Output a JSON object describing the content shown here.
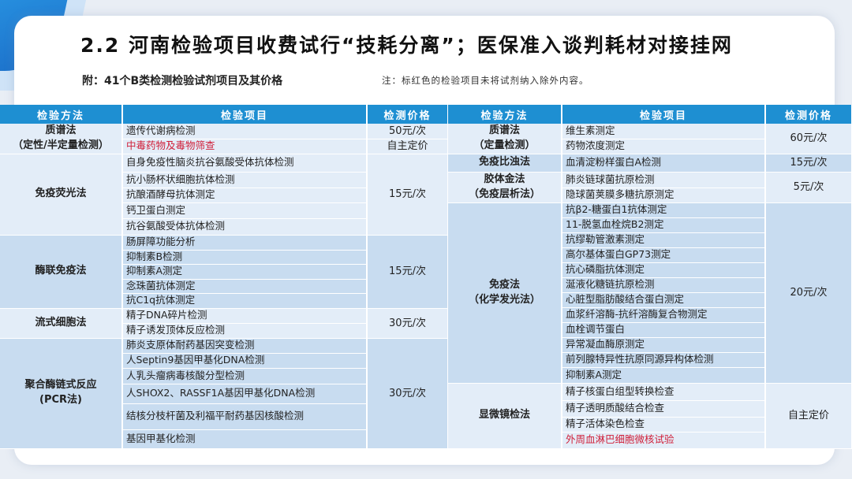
{
  "title": "2.2 河南检验项目收费试行“技耗分离”；医保准入谈判耗材对接挂网",
  "subtitle": "附：41个B类检测检验试剂项目及其价格",
  "note": "注：标红色的检验项目未将试剂纳入除外内容。",
  "colors": {
    "header": "#1e8fd2",
    "red_item": "#d0203a",
    "band_dark": "#c8dcf0",
    "band_light": "#e3edf8"
  },
  "headers": [
    "检验方法",
    "检验项目",
    "检测价格"
  ],
  "left_groups": [
    {
      "method": "质谱法\n（定性/半定量检测）",
      "items": [
        {
          "name": "遗传代谢病检测",
          "price": "50元/次"
        },
        {
          "name": "中毒药物及毒物筛查",
          "price": "自主定价",
          "red": true
        }
      ]
    },
    {
      "method": "免疫荧光法",
      "price": "15元/次",
      "items": [
        {
          "name": "自身免疫性脑炎抗谷氨酸受体抗体检测"
        },
        {
          "name": "抗小肠杯状细胞抗体检测"
        },
        {
          "name": "抗酿酒酵母抗体测定"
        },
        {
          "name": "钙卫蛋白测定"
        },
        {
          "name": "抗谷氨酸受体抗体检测"
        }
      ]
    },
    {
      "method": "酶联免疫法",
      "price": "15元/次",
      "items": [
        {
          "name": "肠屏障功能分析"
        },
        {
          "name": "抑制素B检测"
        },
        {
          "name": "抑制素A测定"
        },
        {
          "name": "念珠菌抗体测定"
        },
        {
          "name": "抗C1q抗体测定"
        }
      ]
    },
    {
      "method": "流式细胞法",
      "price": "30元/次",
      "items": [
        {
          "name": "精子DNA碎片检测"
        },
        {
          "name": "精子诱发顶体反应检测"
        }
      ]
    },
    {
      "method": "聚合酶链式反应\n(PCR法)",
      "price": "30元/次",
      "items": [
        {
          "name": "肺炎支原体耐药基因突变检测"
        },
        {
          "name": "人Septin9基因甲基化DNA检测"
        },
        {
          "name": "人乳头瘤病毒核酸分型检测"
        },
        {
          "name": "人SHOX2、RASSF1A基因甲基化DNA检测"
        },
        {
          "name": "结核分枝杆菌及利福平耐药基因核酸检测"
        },
        {
          "name": "基因甲基化检测"
        }
      ]
    }
  ],
  "right_groups": [
    {
      "method": "质谱法\n（定量检测）",
      "price": "60元/次",
      "items": [
        {
          "name": "维生素测定"
        },
        {
          "name": "药物浓度测定"
        }
      ]
    },
    {
      "method": "免疫比浊法",
      "price": "15元/次",
      "items": [
        {
          "name": "血清淀粉样蛋白A检测"
        }
      ]
    },
    {
      "method": "胶体金法\n（免疫层析法）",
      "price": "5元/次",
      "items": [
        {
          "name": "肺炎链球菌抗原检测"
        },
        {
          "name": "隐球菌荚膜多糖抗原测定"
        }
      ]
    },
    {
      "method": "免疫法\n（化学发光法）",
      "price": "20元/次",
      "items": [
        {
          "name": "抗β2-糖蛋白1抗体测定"
        },
        {
          "name": "11-脱氢血栓烷B2测定"
        },
        {
          "name": "抗缪勒管激素测定"
        },
        {
          "name": "高尔基体蛋白GP73测定"
        },
        {
          "name": "抗心磷脂抗体测定"
        },
        {
          "name": "涎液化糖链抗原检测"
        },
        {
          "name": "心脏型脂肪酸结合蛋白测定"
        },
        {
          "name": "血浆纤溶酶-抗纤溶酶复合物测定"
        },
        {
          "name": "血栓调节蛋白"
        },
        {
          "name": "异常凝血酶原测定"
        },
        {
          "name": "前列腺特异性抗原同源异构体检测"
        },
        {
          "name": "抑制素A测定"
        }
      ]
    },
    {
      "method": "显微镜检法",
      "price": "自主定价",
      "items": [
        {
          "name": "精子核蛋白组型转换检查"
        },
        {
          "name": "精子透明质酸结合检查"
        },
        {
          "name": "精子活体染色检查"
        },
        {
          "name": "外周血淋巴细胞微核试验",
          "red": true
        }
      ]
    }
  ]
}
